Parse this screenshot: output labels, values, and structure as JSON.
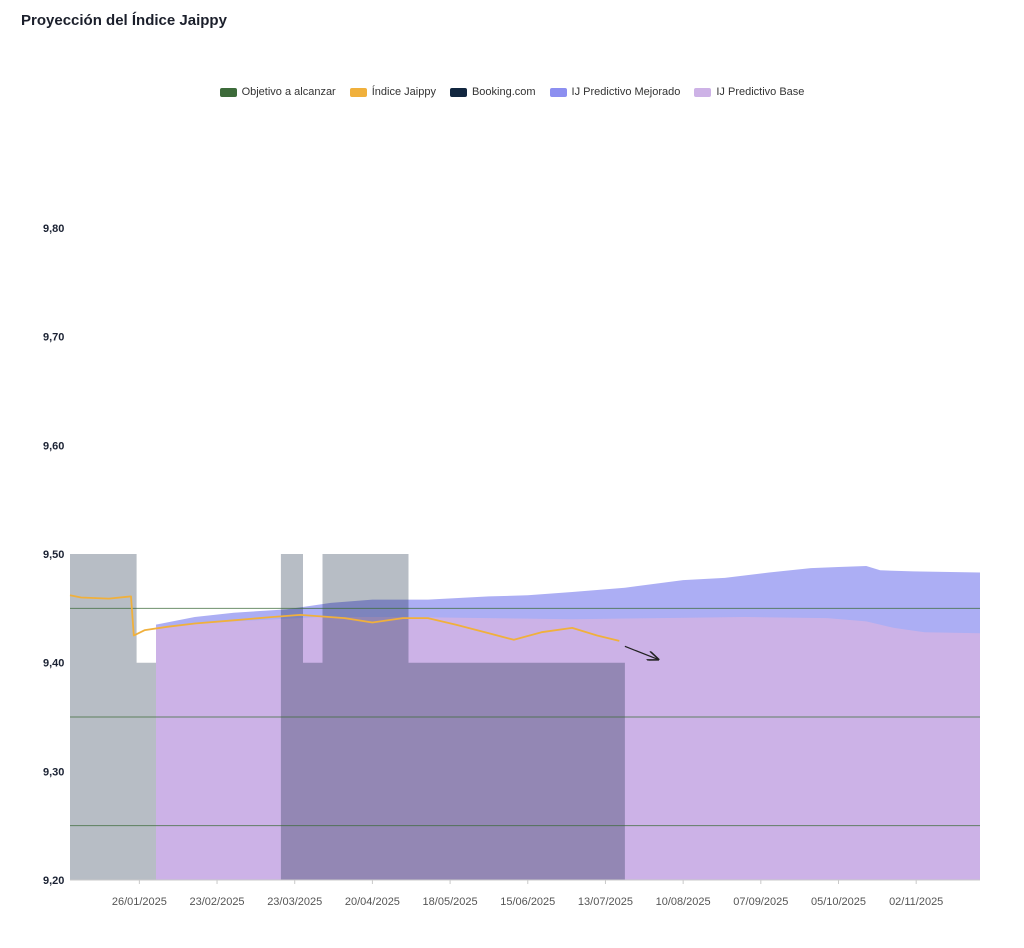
{
  "title": "Proyección del Índice Jaippy",
  "legend": [
    {
      "label": "Objetivo a alcanzar",
      "color": "#3d6b3a"
    },
    {
      "label": "Índice Jaippy",
      "color": "#f0b03c"
    },
    {
      "label": "Booking.com",
      "color": "#11263f"
    },
    {
      "label": "IJ Predictivo Mejorado",
      "color": "#8c8ff0"
    },
    {
      "label": "IJ Predictivo Base",
      "color": "#cdb2e6"
    }
  ],
  "chart_data": {
    "type": "area",
    "title": "Proyección del Índice Jaippy",
    "x_axis": {
      "start": "2025-01-01",
      "end": "2025-11-25",
      "tick_dates": [
        "2025-01-26",
        "2025-02-23",
        "2025-03-23",
        "2025-04-20",
        "2025-05-18",
        "2025-06-15",
        "2025-07-13",
        "2025-08-10",
        "2025-09-07",
        "2025-10-05",
        "2025-11-02"
      ],
      "tick_labels": [
        "26/01/2025",
        "23/02/2025",
        "23/03/2025",
        "20/04/2025",
        "18/05/2025",
        "15/06/2025",
        "13/07/2025",
        "10/08/2025",
        "07/09/2025",
        "05/10/2025",
        "02/11/2025"
      ]
    },
    "y_axis": {
      "ylim": [
        9.2,
        9.8
      ],
      "ticks": [
        9.2,
        9.3,
        9.4,
        9.5,
        9.6,
        9.7,
        9.8
      ],
      "tick_labels": [
        "9,20",
        "9,30",
        "9,40",
        "9,50",
        "9,60",
        "9,70",
        "9,80"
      ]
    },
    "objective_lines": [
      9.25,
      9.35,
      9.45
    ],
    "series": [
      {
        "name": "Booking.com",
        "kind": "step",
        "points": [
          [
            "2025-01-01",
            9.5
          ],
          [
            "2025-01-25",
            9.5
          ],
          [
            "2025-01-25",
            9.4
          ],
          [
            "2025-02-01",
            9.4
          ],
          [
            "2025-02-01",
            9.2
          ],
          [
            "2025-03-18",
            9.2
          ],
          [
            "2025-03-18",
            9.5
          ],
          [
            "2025-03-26",
            9.5
          ],
          [
            "2025-03-26",
            9.4
          ],
          [
            "2025-04-02",
            9.4
          ],
          [
            "2025-04-02",
            9.5
          ],
          [
            "2025-05-03",
            9.5
          ],
          [
            "2025-05-03",
            9.4
          ],
          [
            "2025-07-20",
            9.4
          ],
          [
            "2025-07-20",
            9.2
          ]
        ]
      },
      {
        "name": "IJ Predictivo Mejorado",
        "kind": "area_upper",
        "points": [
          [
            "2025-02-01",
            9.435
          ],
          [
            "2025-02-15",
            9.442
          ],
          [
            "2025-03-01",
            9.446
          ],
          [
            "2025-03-20",
            9.449
          ],
          [
            "2025-04-05",
            9.455
          ],
          [
            "2025-04-20",
            9.458
          ],
          [
            "2025-05-10",
            9.458
          ],
          [
            "2025-06-01",
            9.461
          ],
          [
            "2025-06-15",
            9.462
          ],
          [
            "2025-07-01",
            9.465
          ],
          [
            "2025-07-20",
            9.469
          ],
          [
            "2025-08-10",
            9.476
          ],
          [
            "2025-08-25",
            9.478
          ],
          [
            "2025-09-10",
            9.483
          ],
          [
            "2025-09-25",
            9.487
          ],
          [
            "2025-10-05",
            9.488
          ],
          [
            "2025-10-15",
            9.489
          ],
          [
            "2025-10-20",
            9.485
          ],
          [
            "2025-11-01",
            9.484
          ],
          [
            "2025-11-25",
            9.483
          ]
        ]
      },
      {
        "name": "IJ Predictivo Base",
        "kind": "area_upper",
        "points": [
          [
            "2025-02-01",
            9.433
          ],
          [
            "2025-03-01",
            9.438
          ],
          [
            "2025-04-01",
            9.442
          ],
          [
            "2025-05-01",
            9.442
          ],
          [
            "2025-06-01",
            9.441
          ],
          [
            "2025-07-01",
            9.44
          ],
          [
            "2025-08-01",
            9.441
          ],
          [
            "2025-09-01",
            9.442
          ],
          [
            "2025-10-01",
            9.441
          ],
          [
            "2025-10-15",
            9.438
          ],
          [
            "2025-10-25",
            9.432
          ],
          [
            "2025-11-05",
            9.428
          ],
          [
            "2025-11-25",
            9.427
          ]
        ]
      },
      {
        "name": "Índice Jaippy",
        "kind": "line",
        "points": [
          [
            "2025-01-01",
            9.462
          ],
          [
            "2025-01-05",
            9.46
          ],
          [
            "2025-01-15",
            9.459
          ],
          [
            "2025-01-23",
            9.461
          ],
          [
            "2025-01-24",
            9.425
          ],
          [
            "2025-01-28",
            9.43
          ],
          [
            "2025-02-05",
            9.433
          ],
          [
            "2025-02-15",
            9.436
          ],
          [
            "2025-03-01",
            9.439
          ],
          [
            "2025-03-15",
            9.442
          ],
          [
            "2025-03-25",
            9.444
          ],
          [
            "2025-04-10",
            9.441
          ],
          [
            "2025-04-20",
            9.437
          ],
          [
            "2025-05-01",
            9.441
          ],
          [
            "2025-05-10",
            9.441
          ],
          [
            "2025-05-20",
            9.435
          ],
          [
            "2025-06-01",
            9.427
          ],
          [
            "2025-06-10",
            9.421
          ],
          [
            "2025-06-20",
            9.428
          ],
          [
            "2025-07-01",
            9.432
          ],
          [
            "2025-07-10",
            9.425
          ],
          [
            "2025-07-18",
            9.42
          ]
        ]
      }
    ],
    "annotation": {
      "type": "arrow",
      "from": [
        "2025-07-20",
        9.415
      ],
      "to": [
        "2025-08-01",
        9.403
      ]
    }
  }
}
